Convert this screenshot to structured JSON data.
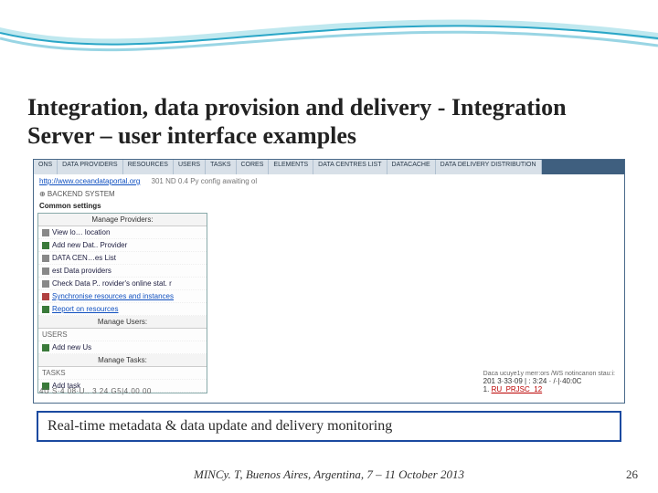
{
  "swoosh": {
    "colors": {
      "light": "#bfe8ef",
      "mid": "#6ec3d9",
      "line": "#2aa6c7",
      "bg": "#ffffff"
    }
  },
  "title": "Integration, data provision and delivery - Integration Server – user interface examples",
  "screenshot": {
    "tabs": [
      "ONS",
      "DATA PROVIDERS",
      "RESOURCES",
      "USERS",
      "TASKS",
      "CORES",
      "ELEMENTS",
      "DATA CENTRES LIST",
      "DATACACHE",
      "DATA DELIVERY DISTRIBUTION"
    ],
    "portal_link": "http://www.oceandataportal.org",
    "portal_rest": "301 ND 0.4 Py config awaiting ol",
    "backend_label": "⊕ BACKEND SYSTEM",
    "common_label": "Common settings",
    "panels": {
      "providers": {
        "header": "Manage Providers:",
        "items": [
          {
            "label": "View lo… location",
            "icon_color": "#888",
            "link": false
          },
          {
            "label": "Add new Dat.. Provider",
            "icon_color": "#3a7a3a",
            "link": false
          },
          {
            "label": "DATA CEN…es List",
            "icon_color": "#888",
            "link": false
          },
          {
            "label": "est Data providers",
            "icon_color": "#888",
            "link": false
          },
          {
            "label": "Check Data P.. rovider's online stat. r",
            "icon_color": "#888",
            "link": false
          },
          {
            "label": "Synchronise resources and instances",
            "icon_color": "#b04040",
            "link": true
          },
          {
            "label": "Report on resources",
            "icon_color": "#3a7a3a",
            "link": true
          }
        ]
      },
      "users": {
        "header": "Manage Users:",
        "pre": "USERS",
        "items": [
          {
            "label": "Add new Us",
            "icon_color": "#3a7a3a",
            "link": false
          }
        ]
      },
      "tasks": {
        "header": "Manage Tasks:",
        "pre": "TASKS",
        "items": [
          {
            "label": "Add task",
            "icon_color": "#3a7a3a",
            "link": false
          }
        ]
      }
    },
    "bottom_left": "4U  S·4 08·U..   3 24 G5|4.00 00",
    "right_block": {
      "err": "Daca ucuye1y merr:ors /WS notincanon stau:i:",
      "line": "201 3·33·09 | : 3:24 · /·|·40:0C",
      "num": "1.",
      "red": "RU_PRJSC_12"
    }
  },
  "caption": "Real-time metadata & data update and delivery monitoring",
  "footer": "MINCy. T, Buenos Aires, Argentina, 7 – 11 October 2013",
  "page": "26"
}
